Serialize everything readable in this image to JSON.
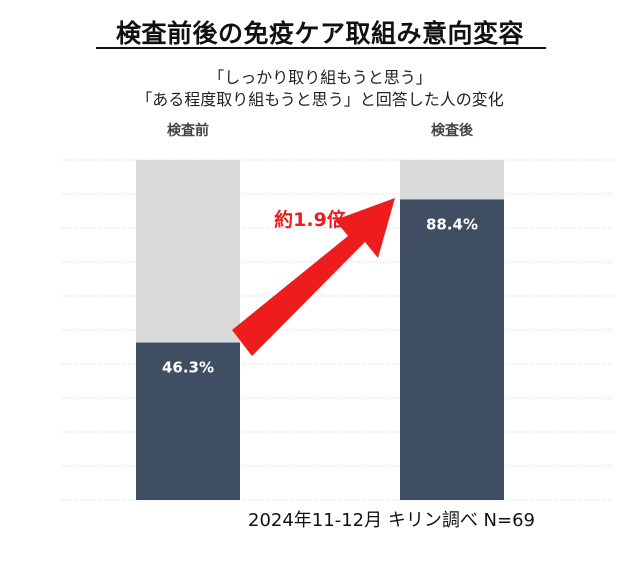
{
  "header": {
    "title": "検査前後の免疫ケア取組み意向変容",
    "subtitle_line1": "「しっかり取り組もうと思う」",
    "subtitle_line2": "「ある程度取り組もうと思う」と回答した人の変化"
  },
  "chart_data": {
    "type": "bar",
    "stacked_to": 100,
    "categories": [
      "検査前",
      "検査後"
    ],
    "values": [
      46.3,
      88.4
    ],
    "value_labels": [
      "46.3%",
      "88.4%"
    ],
    "ylim": [
      0,
      100
    ],
    "grid": true,
    "annotation": "約1.9倍",
    "colors": {
      "bar": "#3f4e62",
      "remainder": "#d9d9d9",
      "arrow": "#ee1c1c",
      "grid": "#d0d0d0"
    }
  },
  "footer": {
    "note": "2024年11-12月  キリン調べ  N=69"
  }
}
